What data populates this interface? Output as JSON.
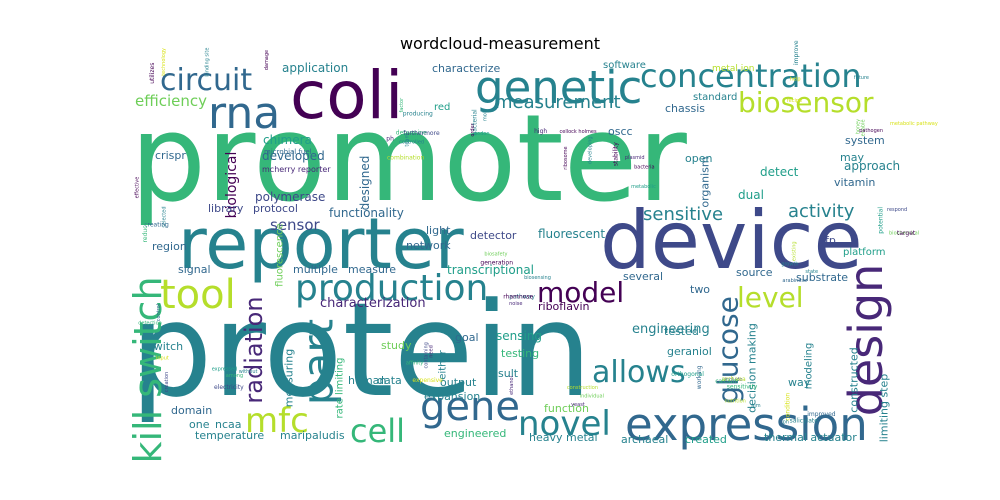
{
  "chart_data": {
    "type": "wordcloud",
    "title": "wordcloud-measurement",
    "palette": [
      "#440154",
      "#482878",
      "#3e4989",
      "#31688e",
      "#26828e",
      "#1f9e89",
      "#35b779",
      "#6ece58",
      "#b5de2b",
      "#d8e219"
    ],
    "words": [
      {
        "text": "promoter",
        "weight": 100
      },
      {
        "text": "protein",
        "weight": 98
      },
      {
        "text": "device",
        "weight": 58
      },
      {
        "text": "reporter",
        "weight": 56
      },
      {
        "text": "coli",
        "weight": 52
      },
      {
        "text": "expression",
        "weight": 36
      },
      {
        "text": "genetic",
        "weight": 30
      },
      {
        "text": "concentration",
        "weight": 28
      },
      {
        "text": "rna",
        "weight": 28
      },
      {
        "text": "design",
        "weight": 28
      },
      {
        "text": "production",
        "weight": 25
      },
      {
        "text": "tool",
        "weight": 25
      },
      {
        "text": "part",
        "weight": 25
      },
      {
        "text": "gene",
        "weight": 25
      },
      {
        "text": "kill switch",
        "weight": 24
      },
      {
        "text": "circuit",
        "weight": 22
      },
      {
        "text": "biosensor",
        "weight": 21
      },
      {
        "text": "novel",
        "weight": 21
      },
      {
        "text": "cell",
        "weight": 20
      },
      {
        "text": "mfc",
        "weight": 20
      },
      {
        "text": "model",
        "weight": 19
      },
      {
        "text": "level",
        "weight": 19
      },
      {
        "text": "allows",
        "weight": 19
      },
      {
        "text": "glucose",
        "weight": 18
      },
      {
        "text": "radiation",
        "weight": 17
      },
      {
        "text": "measurement",
        "weight": 15
      },
      {
        "text": "sensitive",
        "weight": 14
      },
      {
        "text": "activity",
        "weight": 14
      },
      {
        "text": "efficiency",
        "weight": 12
      },
      {
        "text": "biological",
        "weight": 11
      },
      {
        "text": "characterization",
        "weight": 11
      },
      {
        "text": "engineering",
        "weight": 11
      },
      {
        "text": "sensor",
        "weight": 11
      },
      {
        "text": "fluorescent",
        "weight": 11
      },
      {
        "text": "sensing",
        "weight": 11
      },
      {
        "text": "transcriptional",
        "weight": 11
      },
      {
        "text": "library",
        "weight": 10
      },
      {
        "text": "protocol",
        "weight": 10
      },
      {
        "text": "functionality",
        "weight": 10
      },
      {
        "text": "designed",
        "weight": 10
      },
      {
        "text": "system",
        "weight": 10
      },
      {
        "text": "approach",
        "weight": 10
      },
      {
        "text": "detect",
        "weight": 10
      },
      {
        "text": "dual",
        "weight": 10
      },
      {
        "text": "organism",
        "weight": 10
      },
      {
        "text": "chassis",
        "weight": 10
      },
      {
        "text": "application",
        "weight": 10
      },
      {
        "text": "characterize",
        "weight": 10
      },
      {
        "text": "chimera",
        "weight": 10
      },
      {
        "text": "developed",
        "weight": 10
      },
      {
        "text": "polymerase",
        "weight": 10
      },
      {
        "text": "crispr",
        "weight": 10
      },
      {
        "text": "region",
        "weight": 10
      },
      {
        "text": "signal",
        "weight": 10
      },
      {
        "text": "switch",
        "weight": 10
      },
      {
        "text": "measuring",
        "weight": 10
      },
      {
        "text": "human",
        "weight": 10
      },
      {
        "text": "gfp",
        "weight": 10
      },
      {
        "text": "source",
        "weight": 10
      },
      {
        "text": "substrate",
        "weight": 10
      },
      {
        "text": "platform",
        "weight": 10
      },
      {
        "text": "tested",
        "weight": 10
      },
      {
        "text": "geraniol",
        "weight": 10
      },
      {
        "text": "decision making",
        "weight": 10
      },
      {
        "text": "modeling",
        "weight": 10
      },
      {
        "text": "constructed",
        "weight": 10
      },
      {
        "text": "limiting step",
        "weight": 10
      },
      {
        "text": "way",
        "weight": 10
      },
      {
        "text": "result",
        "weight": 10
      },
      {
        "text": "output",
        "weight": 10
      },
      {
        "text": "expansion",
        "weight": 10
      },
      {
        "text": "function",
        "weight": 10
      },
      {
        "text": "engineered",
        "weight": 10
      },
      {
        "text": "heavy metal",
        "weight": 10
      },
      {
        "text": "archaeal",
        "weight": 10
      },
      {
        "text": "created",
        "weight": 10
      },
      {
        "text": "thermal actuator",
        "weight": 10
      },
      {
        "text": "temperature",
        "weight": 10
      },
      {
        "text": "maripaludis",
        "weight": 10
      },
      {
        "text": "domain",
        "weight": 10
      },
      {
        "text": "ncaa",
        "weight": 10
      },
      {
        "text": "one",
        "weight": 10
      },
      {
        "text": "data",
        "weight": 10
      },
      {
        "text": "study",
        "weight": 10
      },
      {
        "text": "testing",
        "weight": 10
      },
      {
        "text": "goal",
        "weight": 10
      },
      {
        "text": "riboflavin",
        "weight": 10
      },
      {
        "text": "two",
        "weight": 10
      },
      {
        "text": "several",
        "weight": 10
      },
      {
        "text": "network",
        "weight": 10
      },
      {
        "text": "light",
        "weight": 10
      },
      {
        "text": "detector",
        "weight": 10
      },
      {
        "text": "multiple",
        "weight": 10
      },
      {
        "text": "measure",
        "weight": 10
      },
      {
        "text": "software",
        "weight": 9
      },
      {
        "text": "standard",
        "weight": 9
      },
      {
        "text": "oscc",
        "weight": 9
      },
      {
        "text": "open",
        "weight": 9
      },
      {
        "text": "may",
        "weight": 9
      },
      {
        "text": "vitamin",
        "weight": 9
      },
      {
        "text": "fluorescence",
        "weight": 9
      },
      {
        "text": "rate limiting",
        "weight": 9
      },
      {
        "text": "either",
        "weight": 9
      },
      {
        "text": "red",
        "weight": 9
      },
      {
        "text": "metal ion",
        "weight": 7
      },
      {
        "text": "mcherry reporter",
        "weight": 7
      },
      {
        "text": "microbial fuel",
        "weight": 7
      }
    ],
    "small_words": [
      "binding site",
      "producing",
      "bacterial",
      "controlled",
      "high",
      "metabolic",
      "future",
      "enable",
      "respond",
      "state",
      "selected",
      "detection",
      "without",
      "containing",
      "construction",
      "sensitivity",
      "include",
      "condition",
      "generation",
      "pathway",
      "utilizes",
      "combination",
      "order",
      "ph",
      "cellock holmes",
      "plasmid",
      "improve",
      "honey",
      "biochemical",
      "existing",
      "effective",
      "input",
      "among",
      "expensive",
      "individual",
      "archaea",
      "calcium",
      "salicylate",
      "biosensing",
      "noise",
      "technology",
      "factor",
      "codon",
      "team",
      "developing",
      "stability",
      "recipe",
      "pathogen",
      "potential",
      "growth",
      "creating",
      "creation",
      "electricity",
      "affinity",
      "yeast",
      "working",
      "nutrition",
      "improved",
      "biosafety",
      "rhamnose",
      "damage",
      "determine",
      "mol",
      "furthermore",
      "ribosome",
      "bacteria",
      "help",
      "metabolic pathway",
      "target",
      "arabinose",
      "reduce",
      "control",
      "expressed",
      "need",
      "ethanol",
      "orthogonal",
      "aim",
      "ph"
    ]
  }
}
